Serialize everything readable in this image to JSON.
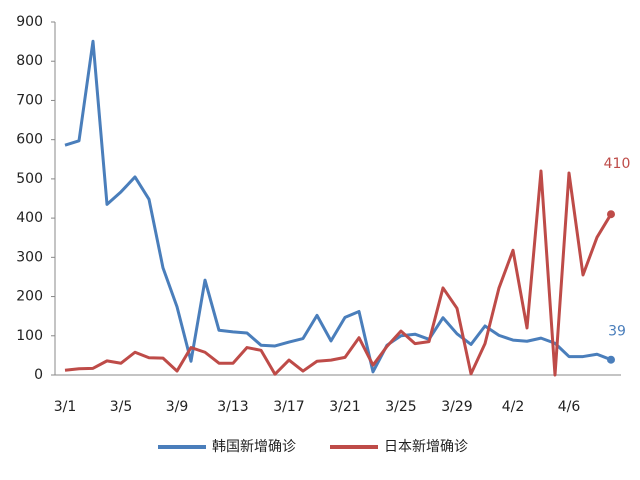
{
  "chart_data": {
    "type": "line",
    "categories": [
      "3/1",
      null,
      null,
      null,
      "3/5",
      null,
      null,
      null,
      "3/9",
      null,
      null,
      null,
      "3/13",
      null,
      null,
      null,
      "3/17",
      null,
      null,
      null,
      "3/21",
      null,
      null,
      null,
      "3/25",
      null,
      null,
      null,
      "3/29",
      null,
      null,
      null,
      "4/2",
      null,
      null,
      null,
      "4/6",
      null,
      null,
      null
    ],
    "series": [
      {
        "name": "韩国新增确诊",
        "color": "#4a7ebb",
        "values": [
          586,
          597,
          851,
          435,
          467,
          505,
          448,
          273,
          174,
          35,
          242,
          114,
          110,
          107,
          76,
          74,
          84,
          93,
          152,
          87,
          147,
          162,
          8,
          76,
          100,
          104,
          91,
          146,
          105,
          78,
          125,
          101,
          89,
          86,
          94,
          81,
          47,
          47,
          53,
          39
        ]
      },
      {
        "name": "日本新增确诊",
        "color": "#be4b48",
        "values": [
          12,
          16,
          17,
          36,
          30,
          58,
          44,
          43,
          10,
          70,
          58,
          30,
          30,
          70,
          63,
          2,
          38,
          10,
          35,
          38,
          45,
          95,
          25,
          73,
          112,
          80,
          85,
          222,
          170,
          3,
          80,
          222,
          318,
          120,
          520,
          0,
          515,
          255,
          351,
          410
        ]
      }
    ],
    "ylim": [
      0,
      900
    ],
    "yticks": [
      0,
      100,
      200,
      300,
      400,
      500,
      600,
      700,
      800,
      900
    ],
    "grid": false,
    "legend": "bottom"
  }
}
